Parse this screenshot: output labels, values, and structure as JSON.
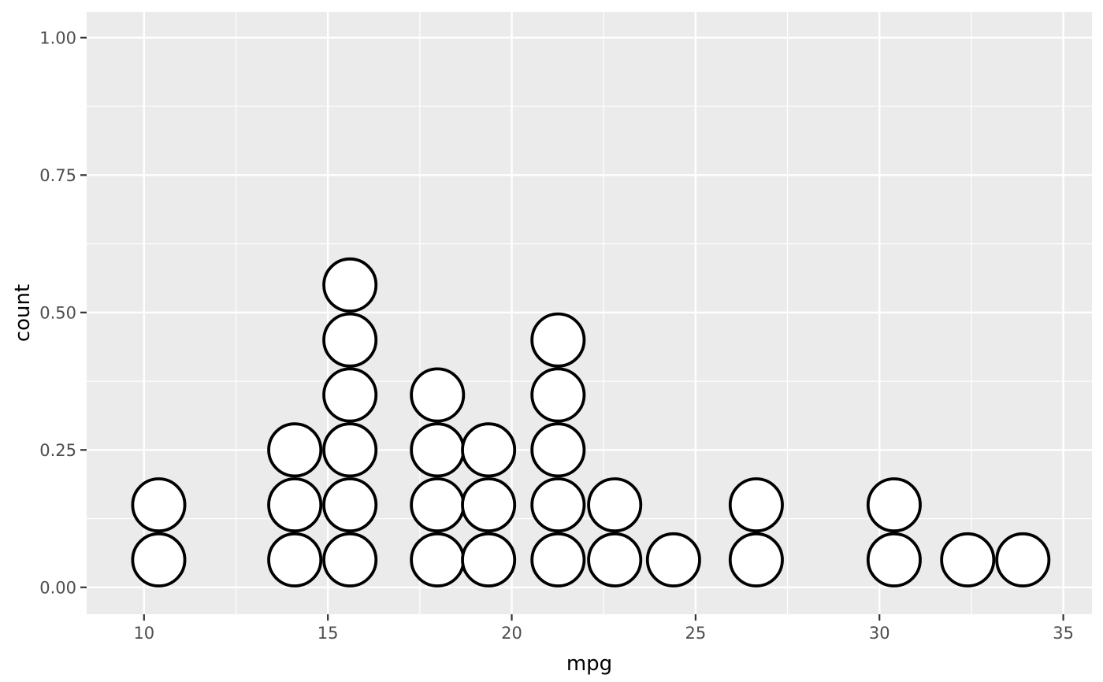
{
  "chart_data": {
    "type": "dotplot",
    "title": "",
    "xlabel": "mpg",
    "ylabel": "count",
    "legend": "none",
    "grid": true,
    "x_ticks": [
      {
        "value": 10,
        "label": "10"
      },
      {
        "value": 15,
        "label": "15"
      },
      {
        "value": 20,
        "label": "20"
      },
      {
        "value": 25,
        "label": "25"
      },
      {
        "value": 30,
        "label": "30"
      },
      {
        "value": 35,
        "label": "35"
      }
    ],
    "y_ticks": [
      {
        "value": 0.0,
        "label": "0.00"
      },
      {
        "value": 0.25,
        "label": "0.25"
      },
      {
        "value": 0.5,
        "label": "0.50"
      },
      {
        "value": 0.75,
        "label": "0.75"
      },
      {
        "value": 1.0,
        "label": "1.00"
      }
    ],
    "x_minor_gridlines": [
      12.5,
      17.5,
      22.5,
      27.5,
      32.5
    ],
    "y_minor_gridlines": [
      0.125,
      0.375,
      0.625,
      0.875
    ],
    "xlim": [
      8.44,
      35.78
    ],
    "ylim": [
      -0.049,
      1.047
    ],
    "dot_diameter_x_units": 1.5,
    "dot_stack_step_y_units": 0.1,
    "stacks": [
      {
        "x": 10.4,
        "count": 2
      },
      {
        "x": 14.1,
        "count": 3
      },
      {
        "x": 15.6,
        "count": 6
      },
      {
        "x": 17.98,
        "count": 4
      },
      {
        "x": 19.37,
        "count": 3
      },
      {
        "x": 21.26,
        "count": 5
      },
      {
        "x": 22.8,
        "count": 2
      },
      {
        "x": 24.4,
        "count": 1
      },
      {
        "x": 26.65,
        "count": 2
      },
      {
        "x": 30.4,
        "count": 2
      },
      {
        "x": 32.4,
        "count": 1
      },
      {
        "x": 33.9,
        "count": 1
      }
    ]
  },
  "style": {
    "page_bg": "#FFFFFF",
    "panel_bg": "#EBEBEB",
    "grid_color": "#FFFFFF",
    "dot_fill": "#FFFFFF",
    "dot_stroke": "#000000",
    "tick_mark_color": "#333333",
    "tick_label_color": "#4D4D4D",
    "axis_title_color": "#000000"
  }
}
